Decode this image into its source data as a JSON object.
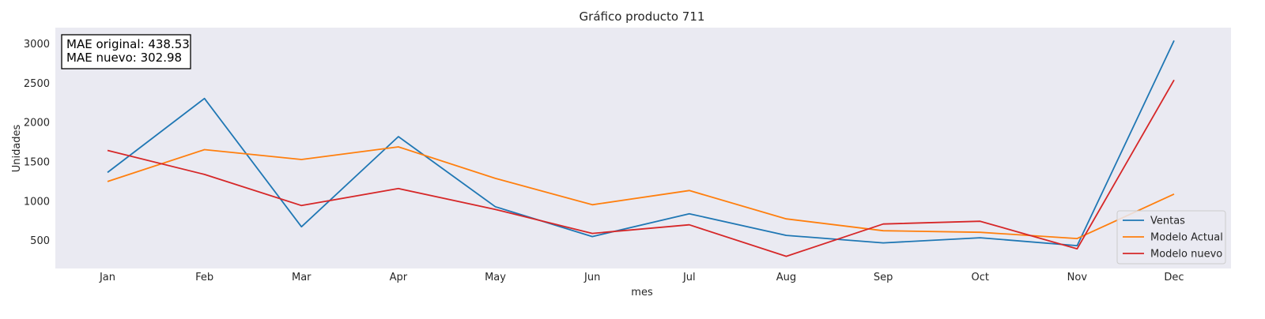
{
  "chart_data": {
    "type": "line",
    "title": "Gráfico producto 711",
    "xlabel": "mes",
    "ylabel": "Unidades",
    "categories": [
      "Jan",
      "Feb",
      "Mar",
      "Apr",
      "May",
      "Jun",
      "Jul",
      "Aug",
      "Sep",
      "Oct",
      "Nov",
      "Dec"
    ],
    "ylim": [
      140,
      3200
    ],
    "yticks": [
      500,
      1000,
      1500,
      2000,
      2500,
      3000
    ],
    "grid": false,
    "legend_position": "lower-right",
    "series": [
      {
        "name": "Ventas",
        "color": "#1f77b4",
        "values": [
          1360,
          2300,
          670,
          1815,
          925,
          545,
          835,
          560,
          465,
          530,
          430,
          3035
        ]
      },
      {
        "name": "Modelo Actual",
        "color": "#ff7f0e",
        "values": [
          1245,
          1650,
          1525,
          1685,
          1285,
          950,
          1130,
          770,
          620,
          600,
          520,
          1085
        ]
      },
      {
        "name": "Modelo nuevo",
        "color": "#d62728",
        "values": [
          1640,
          1335,
          940,
          1155,
          890,
          585,
          695,
          295,
          705,
          740,
          390,
          2535
        ]
      }
    ],
    "annotation": {
      "line1": "MAE original: 438.53",
      "line2": "MAE nuevo: 302.98"
    }
  }
}
